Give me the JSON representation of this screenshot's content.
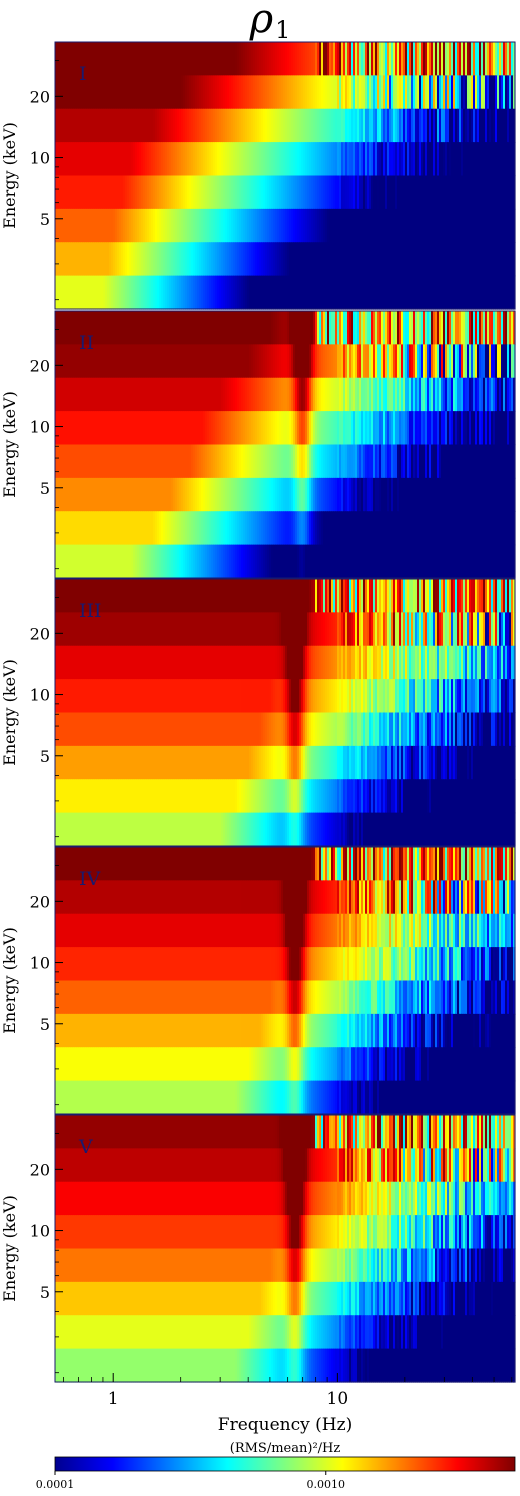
{
  "figure": {
    "title": "ρ1",
    "title_symbol": "ρ",
    "title_subscript": "1",
    "xlabel": "Frequency (Hz)",
    "ylabel": "Energy (keV)",
    "colorbar_label": "(RMS/mean)²/Hz"
  },
  "chart_data": {
    "type": "heatmap",
    "title": "ρ1",
    "xlabel": "Frequency (Hz)",
    "ylabel": "Energy (keV)",
    "x_scale": "log",
    "xlim": [
      0.55,
      62
    ],
    "x_ticks": [
      {
        "value": 1,
        "label": "1"
      },
      {
        "value": 10,
        "label": "10"
      }
    ],
    "y_ticks": [
      {
        "value": 5,
        "label": "5"
      },
      {
        "value": 10,
        "label": "10"
      },
      {
        "value": 20,
        "label": "20"
      }
    ],
    "colorbar": {
      "scale": "log",
      "range": [
        0.0001,
        0.005
      ],
      "ticks": [
        {
          "value": 0.0001,
          "label": "0.0001"
        },
        {
          "value": 0.001,
          "label": "0.0010"
        }
      ],
      "colormap": "jet"
    },
    "panels": [
      {
        "label": "I",
        "power_low": [
          1.0,
          1.0,
          0.95,
          0.9,
          0.85,
          0.78,
          0.7,
          0.6
        ],
        "knee_hz": [
          3.5,
          2.0,
          1.5,
          1.2,
          1.1,
          1.0,
          0.95,
          0.9
        ],
        "qpo_hz": null
      },
      {
        "label": "II",
        "power_low": [
          1.0,
          0.98,
          0.92,
          0.86,
          0.8,
          0.74,
          0.66,
          0.58
        ],
        "knee_hz": [
          5.0,
          4.0,
          3.0,
          2.5,
          2.2,
          1.8,
          1.5,
          1.2
        ],
        "qpo_hz": 7.0
      },
      {
        "label": "III",
        "power_low": [
          1.0,
          0.97,
          0.9,
          0.85,
          0.8,
          0.72,
          0.64,
          0.56
        ],
        "knee_hz": [
          6.5,
          6.0,
          5.5,
          5.0,
          4.5,
          4.0,
          3.5,
          3.0
        ],
        "qpo_hz": 6.5
      },
      {
        "label": "IV",
        "power_low": [
          1.0,
          0.95,
          0.9,
          0.84,
          0.78,
          0.7,
          0.62,
          0.55
        ],
        "knee_hz": [
          7.0,
          6.5,
          6.0,
          5.5,
          5.0,
          4.5,
          4.0,
          3.5
        ],
        "qpo_hz": 6.5
      },
      {
        "label": "V",
        "power_low": [
          0.98,
          0.94,
          0.88,
          0.82,
          0.76,
          0.68,
          0.6,
          0.52
        ],
        "knee_hz": [
          8.0,
          6.5,
          6.0,
          5.5,
          5.0,
          4.5,
          4.0,
          3.5
        ],
        "qpo_hz": 6.5
      }
    ]
  }
}
